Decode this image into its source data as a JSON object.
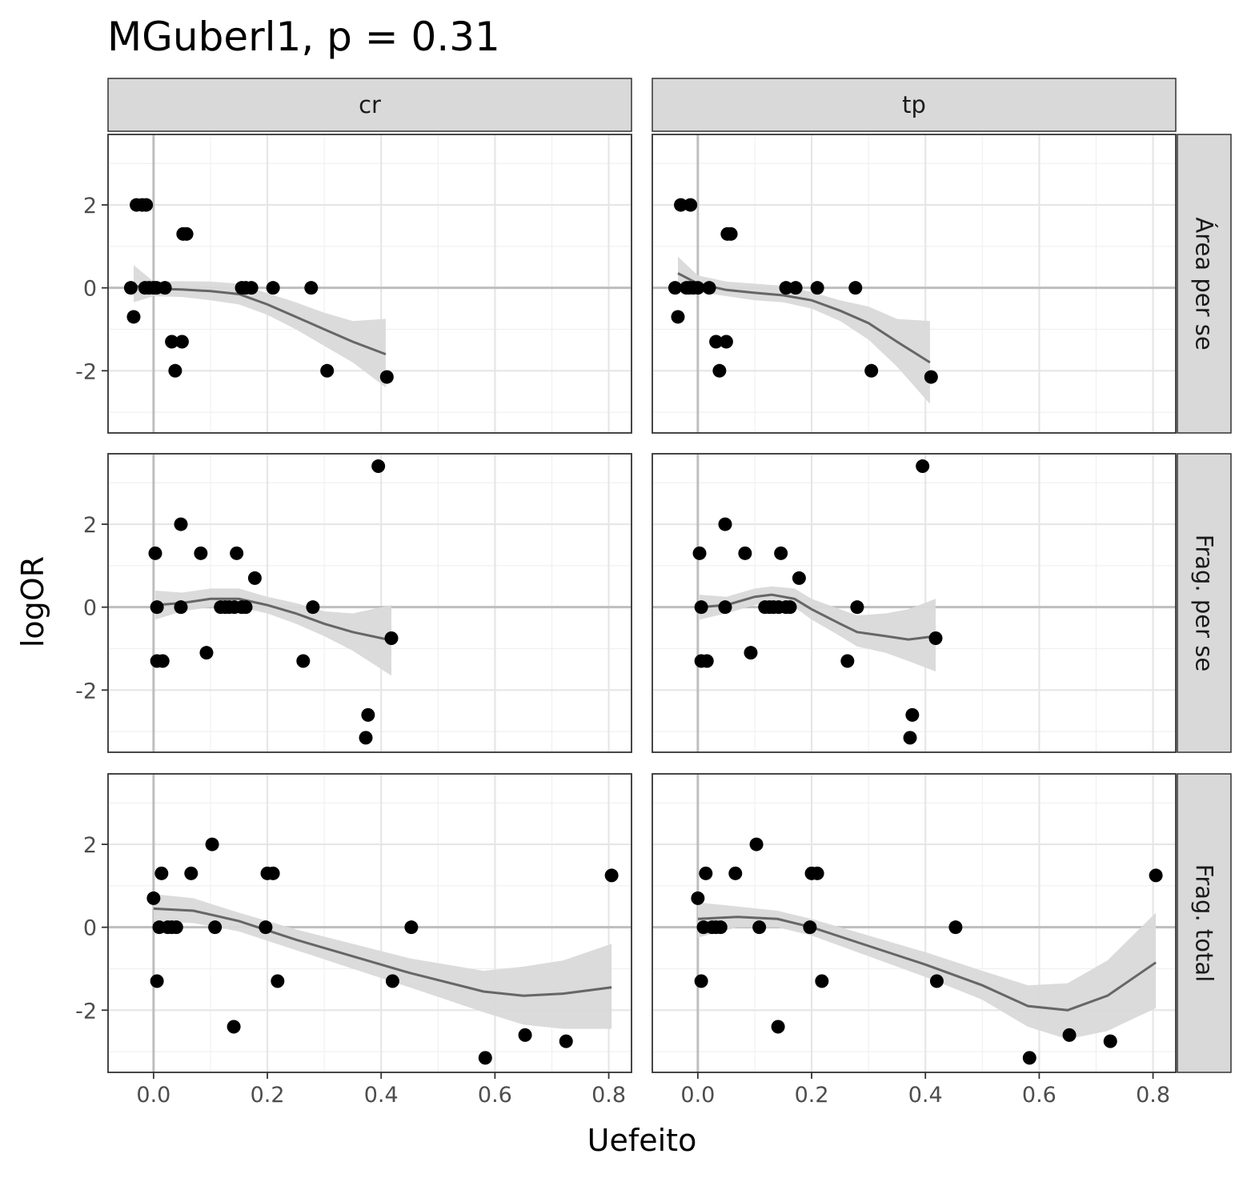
{
  "chart_data": {
    "type": "scatter",
    "title": "MGuberl1, p = 0.31",
    "xlabel": "Uefeito",
    "ylabel": "logOR",
    "xlim": [
      -0.08,
      0.84
    ],
    "ylim": [
      -3.5,
      3.7
    ],
    "x_ticks": [
      0.0,
      0.2,
      0.4,
      0.6,
      0.8
    ],
    "x_tick_labels": [
      "0.0",
      "0.2",
      "0.4",
      "0.6",
      "0.8"
    ],
    "y_ticks": [
      -2,
      0,
      2
    ],
    "y_tick_labels": [
      "-2",
      "0",
      "2"
    ],
    "grid": true,
    "reference_lines": {
      "x": 0,
      "y": 0
    },
    "columns": [
      "cr",
      "tp"
    ],
    "rows": [
      "Área per se",
      "Frag. per se",
      "Frag. total"
    ],
    "point_color": "#000000",
    "smooth_color": "#666666",
    "ribbon_color": "#d9d9d9",
    "panels": [
      {
        "column": "cr",
        "row": "Área per se",
        "points": [
          [
            -0.04,
            0
          ],
          [
            -0.035,
            -0.7
          ],
          [
            -0.03,
            2
          ],
          [
            -0.02,
            2
          ],
          [
            -0.015,
            0
          ],
          [
            -0.013,
            2
          ],
          [
            -0.008,
            0
          ],
          [
            0,
            0
          ],
          [
            0.005,
            0
          ],
          [
            0.02,
            0
          ],
          [
            0.032,
            -1.3
          ],
          [
            0.038,
            -2
          ],
          [
            0.05,
            -1.3
          ],
          [
            0.052,
            1.3
          ],
          [
            0.058,
            1.3
          ],
          [
            0.155,
            0
          ],
          [
            0.162,
            0
          ],
          [
            0.172,
            0
          ],
          [
            0.21,
            0
          ],
          [
            0.277,
            0
          ],
          [
            0.305,
            -2
          ],
          [
            0.41,
            -2.15
          ]
        ],
        "smooth": {
          "x": [
            -0.035,
            0,
            0.05,
            0.1,
            0.15,
            0.2,
            0.25,
            0.3,
            0.35,
            0.408
          ],
          "y": [
            0.05,
            -0.02,
            -0.04,
            -0.08,
            -0.15,
            -0.4,
            -0.7,
            -1.0,
            -1.3,
            -1.6
          ],
          "lower": [
            -0.35,
            -0.2,
            -0.22,
            -0.3,
            -0.4,
            -0.65,
            -1.0,
            -1.4,
            -1.8,
            -2.4
          ],
          "upper": [
            0.55,
            0.15,
            0.16,
            0.15,
            0.1,
            -0.13,
            -0.35,
            -0.6,
            -0.8,
            -0.75
          ]
        }
      },
      {
        "column": "tp",
        "row": "Área per se",
        "points": [
          [
            -0.04,
            0
          ],
          [
            -0.035,
            -0.7
          ],
          [
            -0.03,
            2
          ],
          [
            -0.02,
            0
          ],
          [
            -0.015,
            0
          ],
          [
            -0.013,
            2
          ],
          [
            -0.008,
            0
          ],
          [
            0,
            0
          ],
          [
            0.02,
            0
          ],
          [
            0.032,
            -1.3
          ],
          [
            0.038,
            -2
          ],
          [
            0.05,
            -1.3
          ],
          [
            0.052,
            1.3
          ],
          [
            0.058,
            1.3
          ],
          [
            0.155,
            0
          ],
          [
            0.172,
            0
          ],
          [
            0.21,
            0
          ],
          [
            0.277,
            0
          ],
          [
            0.305,
            -2
          ],
          [
            0.41,
            -2.15
          ]
        ],
        "smooth": {
          "x": [
            -0.035,
            0,
            0.05,
            0.1,
            0.15,
            0.2,
            0.25,
            0.3,
            0.35,
            0.408
          ],
          "y": [
            0.35,
            0.1,
            -0.05,
            -0.12,
            -0.18,
            -0.3,
            -0.55,
            -0.85,
            -1.3,
            -1.8
          ],
          "lower": [
            -0.1,
            -0.1,
            -0.2,
            -0.3,
            -0.35,
            -0.5,
            -0.8,
            -1.25,
            -1.9,
            -2.8
          ],
          "upper": [
            0.75,
            0.3,
            0.15,
            0.1,
            0.05,
            -0.1,
            -0.3,
            -0.45,
            -0.75,
            -0.8
          ]
        }
      },
      {
        "column": "cr",
        "row": "Frag. per se",
        "points": [
          [
            0.003,
            1.3
          ],
          [
            0.006,
            0
          ],
          [
            0.006,
            -1.3
          ],
          [
            0.016,
            -1.3
          ],
          [
            0.048,
            2
          ],
          [
            0.048,
            0
          ],
          [
            0.083,
            1.3
          ],
          [
            0.093,
            -1.1
          ],
          [
            0.118,
            0
          ],
          [
            0.126,
            0
          ],
          [
            0.133,
            0
          ],
          [
            0.142,
            0
          ],
          [
            0.146,
            1.3
          ],
          [
            0.155,
            0
          ],
          [
            0.162,
            0
          ],
          [
            0.178,
            0.7
          ],
          [
            0.263,
            -1.3
          ],
          [
            0.28,
            0
          ],
          [
            0.373,
            -3.15
          ],
          [
            0.377,
            -2.6
          ],
          [
            0.395,
            3.4
          ],
          [
            0.418,
            -0.75
          ]
        ],
        "smooth": {
          "x": [
            0.003,
            0.05,
            0.1,
            0.15,
            0.2,
            0.25,
            0.3,
            0.35,
            0.418
          ],
          "y": [
            0.05,
            0.1,
            0.2,
            0.2,
            0.05,
            -0.15,
            -0.4,
            -0.6,
            -0.8
          ],
          "lower": [
            -0.3,
            -0.1,
            0.0,
            0.0,
            -0.15,
            -0.4,
            -0.7,
            -1.05,
            -1.65
          ],
          "upper": [
            0.4,
            0.35,
            0.45,
            0.45,
            0.25,
            0.1,
            -0.1,
            -0.15,
            0.05
          ]
        }
      },
      {
        "column": "tp",
        "row": "Frag. per se",
        "points": [
          [
            0.003,
            1.3
          ],
          [
            0.006,
            0
          ],
          [
            0.006,
            -1.3
          ],
          [
            0.016,
            -1.3
          ],
          [
            0.048,
            2
          ],
          [
            0.048,
            0
          ],
          [
            0.083,
            1.3
          ],
          [
            0.093,
            -1.1
          ],
          [
            0.118,
            0
          ],
          [
            0.126,
            0
          ],
          [
            0.133,
            0
          ],
          [
            0.142,
            0
          ],
          [
            0.146,
            1.3
          ],
          [
            0.155,
            0
          ],
          [
            0.162,
            0
          ],
          [
            0.178,
            0.7
          ],
          [
            0.263,
            -1.3
          ],
          [
            0.28,
            0
          ],
          [
            0.373,
            -3.15
          ],
          [
            0.377,
            -2.6
          ],
          [
            0.395,
            3.4
          ],
          [
            0.418,
            -0.75
          ]
        ],
        "smooth": {
          "x": [
            0.003,
            0.05,
            0.1,
            0.13,
            0.17,
            0.2,
            0.25,
            0.28,
            0.33,
            0.37,
            0.418
          ],
          "y": [
            0.0,
            0.05,
            0.25,
            0.3,
            0.2,
            -0.05,
            -0.4,
            -0.6,
            -0.7,
            -0.78,
            -0.7
          ],
          "lower": [
            -0.3,
            -0.15,
            0.05,
            0.1,
            0.0,
            -0.3,
            -0.7,
            -0.95,
            -1.1,
            -1.3,
            -1.55
          ],
          "upper": [
            0.3,
            0.25,
            0.45,
            0.5,
            0.45,
            0.2,
            -0.05,
            -0.2,
            -0.15,
            -0.05,
            0.2
          ]
        }
      },
      {
        "column": "cr",
        "row": "Frag. total",
        "points": [
          [
            0.0,
            0.7
          ],
          [
            0.006,
            -1.3
          ],
          [
            0.01,
            0
          ],
          [
            0.014,
            1.3
          ],
          [
            0.025,
            0
          ],
          [
            0.032,
            0
          ],
          [
            0.04,
            0
          ],
          [
            0.066,
            1.3
          ],
          [
            0.103,
            2
          ],
          [
            0.108,
            0
          ],
          [
            0.141,
            -2.4
          ],
          [
            0.197,
            0
          ],
          [
            0.2,
            1.3
          ],
          [
            0.21,
            1.3
          ],
          [
            0.218,
            -1.3
          ],
          [
            0.42,
            -1.3
          ],
          [
            0.453,
            0
          ],
          [
            0.583,
            -3.15
          ],
          [
            0.653,
            -2.6
          ],
          [
            0.725,
            -2.75
          ],
          [
            0.805,
            1.25
          ]
        ],
        "smooth": {
          "x": [
            0.0,
            0.07,
            0.15,
            0.25,
            0.35,
            0.45,
            0.58,
            0.65,
            0.72,
            0.805
          ],
          "y": [
            0.45,
            0.4,
            0.15,
            -0.3,
            -0.7,
            -1.1,
            -1.55,
            -1.65,
            -1.6,
            -1.45
          ],
          "lower": [
            0.15,
            0.1,
            -0.1,
            -0.55,
            -1.0,
            -1.45,
            -2.05,
            -2.35,
            -2.45,
            -2.45
          ],
          "upper": [
            0.8,
            0.7,
            0.35,
            -0.05,
            -0.4,
            -0.75,
            -1.05,
            -0.95,
            -0.8,
            -0.4
          ]
        }
      },
      {
        "column": "tp",
        "row": "Frag. total",
        "points": [
          [
            0.0,
            0.7
          ],
          [
            0.006,
            -1.3
          ],
          [
            0.01,
            0
          ],
          [
            0.014,
            1.3
          ],
          [
            0.025,
            0
          ],
          [
            0.032,
            0
          ],
          [
            0.04,
            0
          ],
          [
            0.066,
            1.3
          ],
          [
            0.103,
            2
          ],
          [
            0.108,
            0
          ],
          [
            0.141,
            -2.4
          ],
          [
            0.197,
            0
          ],
          [
            0.2,
            1.3
          ],
          [
            0.21,
            1.3
          ],
          [
            0.218,
            -1.3
          ],
          [
            0.42,
            -1.3
          ],
          [
            0.453,
            0
          ],
          [
            0.583,
            -3.15
          ],
          [
            0.653,
            -2.6
          ],
          [
            0.725,
            -2.75
          ],
          [
            0.805,
            1.25
          ]
        ],
        "smooth": {
          "x": [
            0.0,
            0.07,
            0.14,
            0.2,
            0.3,
            0.4,
            0.5,
            0.58,
            0.65,
            0.72,
            0.805
          ],
          "y": [
            0.2,
            0.25,
            0.2,
            0.0,
            -0.45,
            -0.9,
            -1.4,
            -1.9,
            -2.0,
            -1.65,
            -0.85
          ],
          "lower": [
            -0.25,
            0.0,
            0.0,
            -0.2,
            -0.7,
            -1.2,
            -1.75,
            -2.4,
            -2.7,
            -2.5,
            -1.95
          ],
          "upper": [
            0.6,
            0.5,
            0.4,
            0.2,
            -0.2,
            -0.6,
            -1.05,
            -1.4,
            -1.35,
            -0.8,
            0.35
          ]
        }
      }
    ]
  }
}
